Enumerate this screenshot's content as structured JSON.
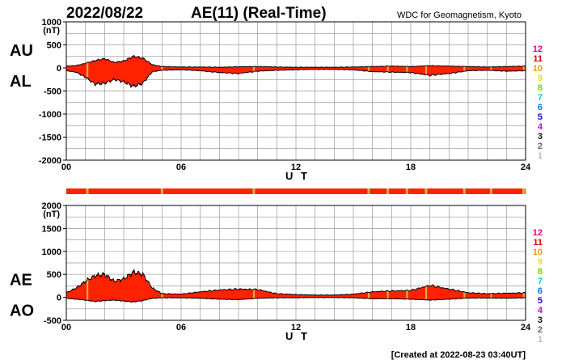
{
  "header": {
    "date": "2022/08/22",
    "title": "AE(11) (Real-Time)",
    "credit": "WDC for Geomagnetism, Kyoto"
  },
  "footer": {
    "created": "[Created at 2022-08-23 03:40UT]"
  },
  "colors": {
    "fill": "#ff2200",
    "line": "#000000",
    "grid": "#999999",
    "station_flag": "#e8b040"
  },
  "legend": {
    "labels": [
      "12",
      "11",
      "10",
      "9",
      "8",
      "7",
      "6",
      "5",
      "4",
      "3",
      "2",
      "1"
    ],
    "colors": [
      "#e8007f",
      "#e00000",
      "#ff9900",
      "#e6e600",
      "#66dd00",
      "#00cccc",
      "#0077ee",
      "#2200cc",
      "#cc00cc",
      "#111111",
      "#666666",
      "#bbbbbb"
    ]
  },
  "chart_data": [
    {
      "type": "area",
      "series_labels": [
        "AU",
        "AL"
      ],
      "yunit": "(nT)",
      "xlabel": "U T",
      "ylim": [
        -2000,
        1000
      ],
      "yticks": [
        1000,
        500,
        0,
        -500,
        -1000,
        -1500,
        -2000
      ],
      "ytick_labels": [
        "1000",
        "500",
        "0",
        "-500",
        "-1000",
        "-1500",
        "-2000"
      ],
      "xlim": [
        0,
        24
      ],
      "xticks": [
        0,
        6,
        12,
        18,
        24
      ],
      "xtick_labels": [
        "00",
        "06",
        "12",
        "18",
        "24"
      ],
      "upper": {
        "x": [
          0,
          0.5,
          1,
          1.5,
          2,
          2.5,
          3,
          3.5,
          4,
          4.5,
          5,
          6,
          7,
          8,
          9,
          10,
          11,
          12,
          13,
          14,
          15,
          16,
          17,
          18,
          19,
          20,
          21,
          22,
          23,
          24
        ],
        "y": [
          40,
          50,
          100,
          160,
          200,
          120,
          150,
          250,
          210,
          70,
          30,
          20,
          20,
          15,
          25,
          30,
          20,
          15,
          15,
          15,
          20,
          30,
          40,
          30,
          50,
          40,
          30,
          20,
          30,
          40
        ]
      },
      "lower": {
        "x": [
          0,
          0.5,
          1,
          1.5,
          2,
          2.5,
          3,
          3.5,
          4,
          4.5,
          5,
          6,
          7,
          8,
          9,
          10,
          11,
          12,
          13,
          14,
          15,
          16,
          17,
          18,
          19,
          20,
          21,
          22,
          23,
          24
        ],
        "y": [
          -60,
          -90,
          -200,
          -350,
          -330,
          -250,
          -300,
          -400,
          -330,
          -80,
          -50,
          -40,
          -60,
          -100,
          -120,
          -70,
          -50,
          -40,
          -30,
          -30,
          -40,
          -80,
          -90,
          -100,
          -160,
          -120,
          -60,
          -50,
          -70,
          -60
        ]
      }
    },
    {
      "type": "area",
      "series_labels": [
        "AE",
        "AO"
      ],
      "yunit": "(nT)",
      "xlabel": "U T",
      "ylim": [
        -500,
        2000
      ],
      "yticks": [
        2000,
        1500,
        1000,
        500,
        0,
        -500
      ],
      "ytick_labels": [
        "2000",
        "1500",
        "1000",
        "500",
        "0",
        "-500"
      ],
      "xlim": [
        0,
        24
      ],
      "xticks": [
        0,
        6,
        12,
        18,
        24
      ],
      "xtick_labels": [
        "00",
        "06",
        "12",
        "18",
        "24"
      ],
      "upper": {
        "x": [
          0,
          0.5,
          1,
          1.5,
          2,
          2.5,
          3,
          3.5,
          4,
          4.5,
          5,
          6,
          7,
          8,
          9,
          10,
          11,
          12,
          13,
          14,
          15,
          16,
          17,
          18,
          19,
          20,
          21,
          22,
          23,
          24
        ],
        "y": [
          100,
          200,
          350,
          470,
          500,
          350,
          400,
          550,
          500,
          200,
          80,
          70,
          120,
          160,
          180,
          170,
          80,
          60,
          50,
          50,
          70,
          120,
          140,
          150,
          260,
          180,
          100,
          80,
          90,
          100
        ]
      },
      "lower": {
        "x": [
          0,
          0.5,
          1,
          1.5,
          2,
          2.5,
          3,
          3.5,
          4,
          4.5,
          5,
          6,
          7,
          8,
          9,
          10,
          11,
          12,
          13,
          14,
          15,
          16,
          17,
          18,
          19,
          20,
          21,
          22,
          23,
          24
        ],
        "y": [
          -20,
          -40,
          -60,
          -90,
          -70,
          -60,
          -80,
          -100,
          -70,
          -20,
          -10,
          -10,
          -20,
          -40,
          -50,
          -20,
          -10,
          -10,
          -5,
          -5,
          -10,
          -30,
          -30,
          -40,
          -60,
          -40,
          -15,
          -15,
          -20,
          -10
        ]
      }
    }
  ],
  "station_bar": {
    "x": [
      0,
      24
    ],
    "flag_times": [
      1.1,
      5.0,
      9.8,
      15.8,
      16.8,
      17.8,
      18.8,
      20.8,
      22.2,
      23.9
    ]
  }
}
